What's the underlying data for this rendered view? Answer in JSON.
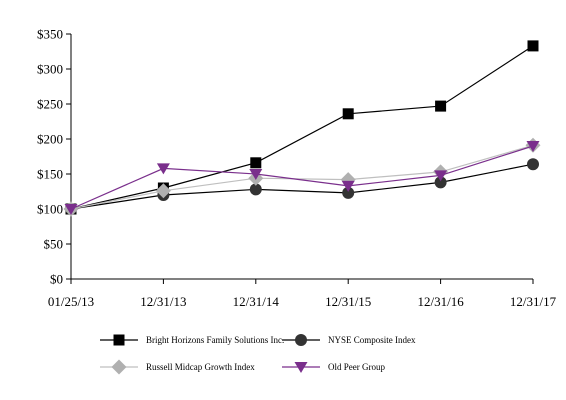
{
  "chart_data": {
    "type": "line",
    "title": "",
    "xlabel": "",
    "ylabel": "",
    "categories": [
      "01/25/13",
      "12/31/13",
      "12/31/14",
      "12/31/15",
      "12/31/16",
      "12/31/17"
    ],
    "y_ticks": [
      "$0",
      "$50",
      "$100",
      "$150",
      "$200",
      "$250",
      "$300",
      "$350"
    ],
    "ylim": [
      0,
      350
    ],
    "grid": false,
    "legend_position": "bottom",
    "series": [
      {
        "name": "Bright Horizons Family Solutions Inc.",
        "marker": "square",
        "line_color": "#000000",
        "marker_color": "#000000",
        "values": [
          100,
          130,
          166,
          236,
          247,
          333
        ]
      },
      {
        "name": "NYSE Composite Index",
        "marker": "circle",
        "line_color": "#000000",
        "marker_color": "#333333",
        "values": [
          100,
          120,
          128,
          123,
          138,
          164
        ]
      },
      {
        "name": "Russell Midcap Growth Index",
        "marker": "diamond",
        "line_color": "#bfbfbf",
        "marker_color": "#b0b0b0",
        "values": [
          100,
          126,
          144,
          142,
          153,
          191
        ]
      },
      {
        "name": "Old Peer Group",
        "marker": "triangle-down",
        "line_color": "#7a2f8c",
        "marker_color": "#7a2f8c",
        "values": [
          100,
          158,
          150,
          133,
          148,
          190
        ]
      }
    ]
  }
}
